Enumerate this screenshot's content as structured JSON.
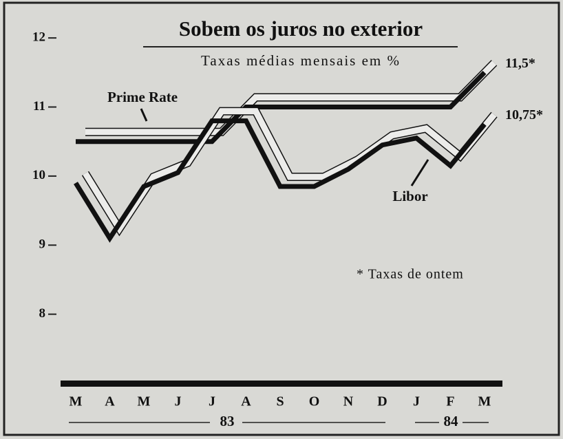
{
  "chart_data": {
    "type": "line",
    "title": "Sobem os juros no exterior",
    "subtitle": "Taxas médias mensais em %",
    "note": "* Taxas de ontem",
    "categories": [
      "M",
      "A",
      "M",
      "J",
      "J",
      "A",
      "S",
      "O",
      "N",
      "D",
      "J",
      "F",
      "M"
    ],
    "year_labels": [
      "83",
      "84"
    ],
    "series": [
      {
        "name": "Prime Rate",
        "color": "#111111",
        "values": [
          10.5,
          10.5,
          10.5,
          10.5,
          10.5,
          11,
          11,
          11,
          11,
          11,
          11,
          11,
          11.5
        ],
        "value_labels": [
          null,
          null,
          null,
          null,
          null,
          null,
          null,
          null,
          null,
          null,
          null,
          null,
          "11,5*"
        ]
      },
      {
        "name": "Libor",
        "color": "#111111",
        "values": [
          9.9,
          9.1,
          9.85,
          10.05,
          10.8,
          10.8,
          9.85,
          9.85,
          10.1,
          10.45,
          10.55,
          10.15,
          10.75
        ],
        "value_labels": [
          null,
          null,
          null,
          null,
          null,
          null,
          null,
          null,
          null,
          null,
          null,
          null,
          "10,75*"
        ]
      }
    ],
    "ylim": [
      7,
      12.4
    ],
    "yticks": [
      8,
      9,
      10,
      11,
      12
    ]
  }
}
